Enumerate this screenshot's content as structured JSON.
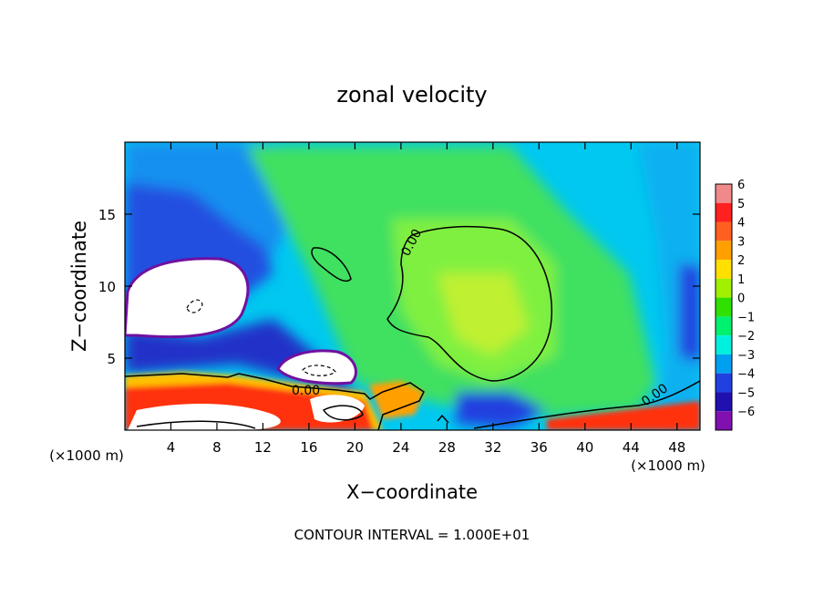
{
  "chart_data": {
    "type": "heatmap",
    "title": "zonal velocity",
    "xlabel": "X−coordinate",
    "ylabel": "Z−coordinate",
    "x_unit_left": "(×1000 m)",
    "x_unit_right": "(×1000 m)",
    "footer": "CONTOUR INTERVAL = 1.000E+01",
    "xlim": [
      0,
      50
    ],
    "ylim": [
      0,
      20
    ],
    "x_ticks": [
      4,
      8,
      12,
      16,
      20,
      24,
      28,
      32,
      36,
      40,
      44,
      48
    ],
    "y_ticks": [
      5,
      10,
      15
    ],
    "x_tick_labels": [
      "4",
      "8",
      "12",
      "16",
      "20",
      "24",
      "28",
      "32",
      "36",
      "40",
      "44",
      "48"
    ],
    "y_tick_labels": [
      "5",
      "10",
      "15"
    ],
    "contour_labels": [
      "0.00",
      "0.00",
      "0.00"
    ],
    "colorbar": {
      "levels": [
        6,
        5,
        4,
        3,
        2,
        1,
        0,
        -1,
        -2,
        -3,
        -4,
        -5,
        -6
      ],
      "labels": [
        "6",
        "5",
        "4",
        "3",
        "2",
        "1",
        "0",
        "−1",
        "−2",
        "−3",
        "−4",
        "−5",
        "−6"
      ],
      "colors": [
        "#f08a8a",
        "#ff2020",
        "#ff6020",
        "#ffa000",
        "#ffe000",
        "#a0f000",
        "#30e000",
        "#00f070",
        "#00f0e0",
        "#00a0f0",
        "#2040e0",
        "#2010b0",
        "#8010b0"
      ]
    }
  }
}
